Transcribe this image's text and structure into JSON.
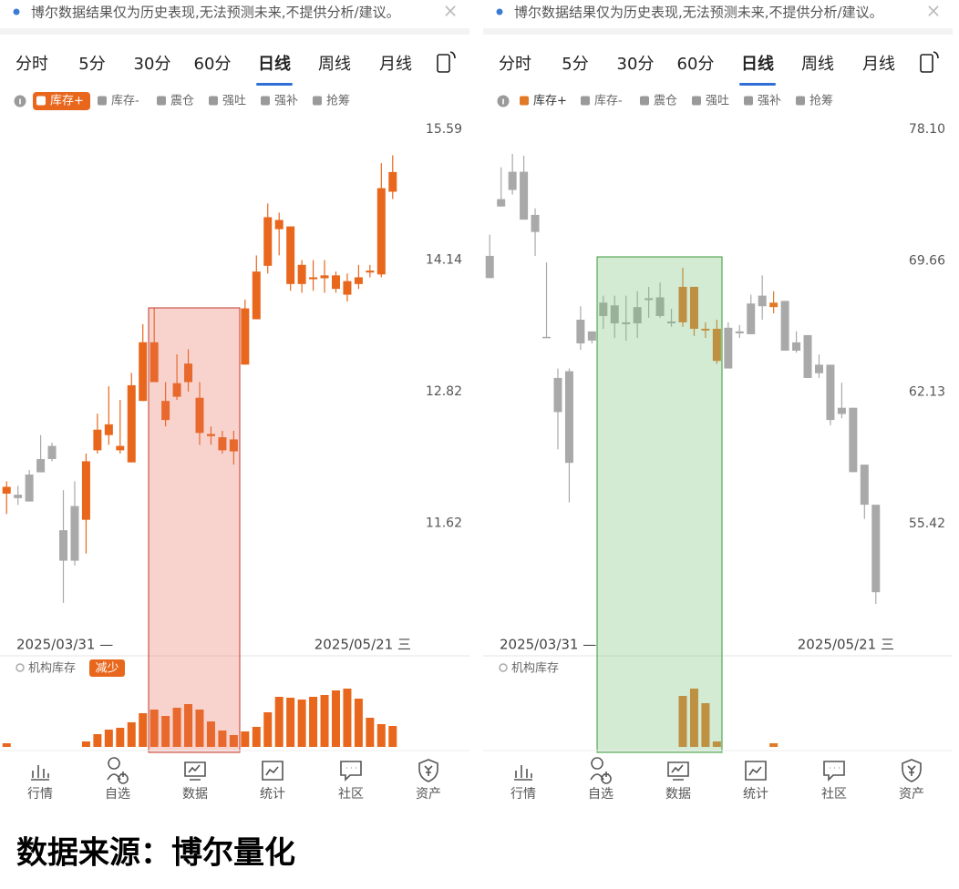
{
  "footer": "数据来源：博尔量化",
  "panels": [
    {
      "notice": "博尔数据结果仅为历史表现,无法预测未来,不提供分析/建议。",
      "close": "×",
      "tabs": [
        "分时",
        "5分",
        "30分",
        "60分",
        "日线",
        "周线",
        "月线"
      ],
      "active_tab": 4,
      "legend": [
        "库存+",
        "库存-",
        "震仓",
        "强吐",
        "强补",
        "抢筹"
      ],
      "legend_active": 0,
      "legend_style": "pill",
      "chart_data": {
        "type": "candlestick",
        "log_scale": true,
        "ylim": [
          10.67,
          15.77
        ],
        "yticks": [
          15.59,
          14.14,
          12.82,
          11.62
        ],
        "highlight_color": "#e8671c",
        "base_color": "#a9a9a9",
        "candles": [
          [
            11.88,
            11.94,
            11.99,
            11.7
          ],
          [
            11.87,
            11.84,
            11.95,
            11.78
          ],
          [
            11.81,
            12.05,
            12.09,
            11.81
          ],
          [
            12.07,
            12.19,
            12.41,
            12.07
          ],
          [
            12.19,
            12.31,
            12.34,
            12.17
          ],
          [
            11.56,
            11.3,
            11.91,
            10.95
          ],
          [
            11.3,
            11.77,
            11.99,
            11.26
          ],
          [
            11.65,
            12.17,
            12.24,
            11.36
          ],
          [
            12.27,
            12.46,
            12.61,
            12.24
          ],
          [
            12.41,
            12.51,
            12.87,
            12.32
          ],
          [
            12.31,
            12.27,
            12.74,
            12.24
          ],
          [
            12.16,
            12.88,
            13.0,
            12.16
          ],
          [
            12.73,
            13.3,
            13.48,
            12.73
          ],
          [
            13.3,
            12.91,
            13.64,
            12.91
          ],
          [
            12.73,
            12.55,
            12.91,
            12.49
          ],
          [
            12.77,
            12.9,
            13.18,
            12.74
          ],
          [
            12.91,
            13.09,
            13.23,
            12.82
          ],
          [
            12.76,
            12.43,
            12.91,
            12.32
          ],
          [
            12.42,
            12.4,
            12.49,
            12.32
          ],
          [
            12.39,
            12.27,
            12.45,
            12.24
          ],
          [
            12.37,
            12.26,
            12.45,
            12.14
          ],
          [
            13.08,
            13.64,
            13.73,
            13.08
          ],
          [
            13.53,
            14.02,
            14.19,
            13.53
          ],
          [
            14.08,
            14.6,
            14.75,
            14.0
          ],
          [
            14.47,
            14.57,
            14.65,
            14.19
          ],
          [
            14.5,
            13.89,
            14.5,
            13.82
          ],
          [
            13.89,
            14.09,
            14.14,
            13.8
          ],
          [
            13.96,
            13.94,
            14.14,
            13.82
          ],
          [
            13.98,
            13.95,
            14.14,
            13.8
          ],
          [
            13.98,
            13.84,
            14.02,
            13.8
          ],
          [
            13.92,
            13.78,
            14.0,
            13.71
          ],
          [
            13.89,
            13.96,
            14.09,
            13.84
          ],
          [
            14.01,
            14.03,
            14.09,
            13.96
          ],
          [
            13.99,
            14.92,
            15.2,
            13.96
          ],
          [
            14.88,
            15.1,
            15.29,
            14.8
          ]
        ],
        "highlight": [
          true,
          false,
          false,
          false,
          false,
          false,
          false,
          true,
          true,
          true,
          true,
          true,
          true,
          true,
          true,
          true,
          true,
          true,
          true,
          true,
          true,
          true,
          true,
          true,
          true,
          true,
          true,
          true,
          true,
          true,
          true,
          true,
          true,
          true,
          true
        ],
        "start_date": "2025/03/31 —",
        "end_date": "2025/05/21 三",
        "volume_label": "机构库存",
        "volume_badge": "减少",
        "volume_color": "#e8671c",
        "volumes": [
          4,
          0,
          0,
          0,
          0,
          0,
          0,
          6,
          14,
          19,
          21,
          27,
          37,
          41,
          34,
          43,
          47,
          41,
          28,
          18,
          13,
          17,
          22,
          38,
          55,
          54,
          52,
          55,
          57,
          62,
          64,
          53,
          32,
          25,
          23
        ]
      },
      "nav": [
        "行情",
        "自选",
        "数据",
        "统计",
        "社区",
        "资产"
      ]
    },
    {
      "notice": "博尔数据结果仅为历史表现,无法预测未来,不提供分析/建议。",
      "close": "×",
      "tabs": [
        "分时",
        "5分",
        "30分",
        "60分",
        "日线",
        "周线",
        "月线"
      ],
      "active_tab": 4,
      "legend": [
        "库存+",
        "库存-",
        "震仓",
        "强吐",
        "强补",
        "抢筹"
      ],
      "legend_active": 0,
      "legend_style": "square",
      "chart_data": {
        "type": "candlestick",
        "log_scale": true,
        "ylim": [
          50.19,
          79.16
        ],
        "yticks": [
          {
            "value": 78.1,
            "label": "78.10"
          },
          69.66,
          62.13,
          55.42
        ],
        "highlight_color": "#e07a26",
        "base_color": "#a9a9a9",
        "candles": [
          [
            68.62,
            69.96,
            71.26,
            68.62
          ],
          [
            73.03,
            73.5,
            75.56,
            73.03
          ],
          [
            74.09,
            75.27,
            76.45,
            73.79
          ],
          [
            75.27,
            72.2,
            76.33,
            72.2
          ],
          [
            72.5,
            71.43,
            72.91,
            69.96
          ],
          [
            65.2,
            65.14,
            69.56,
            65.14
          ],
          [
            61.07,
            62.91,
            63.43,
            59.12
          ],
          [
            58.43,
            63.28,
            63.43,
            56.45
          ],
          [
            64.83,
            66.18,
            66.96,
            64.47
          ],
          [
            64.99,
            65.51,
            65.51,
            64.83
          ],
          [
            66.39,
            67.17,
            67.58,
            65.66
          ],
          [
            67.01,
            65.97,
            67.58,
            65.14
          ],
          [
            65.92,
            66.03,
            67.58,
            64.99
          ],
          [
            65.97,
            66.91,
            67.84,
            65.14
          ],
          [
            67.32,
            67.43,
            68.1,
            66.29
          ],
          [
            66.39,
            67.48,
            68.36,
            66.29
          ],
          [
            66.08,
            65.97,
            66.81,
            65.77
          ],
          [
            66.03,
            68.1,
            69.24,
            65.77
          ],
          [
            68.1,
            65.66,
            68.1,
            65.25
          ],
          [
            65.66,
            65.56,
            66.03,
            65.14
          ],
          [
            65.66,
            63.85,
            66.18,
            63.69
          ],
          [
            63.43,
            65.72,
            66.03,
            63.43
          ],
          [
            65.4,
            65.51,
            65.87,
            65.14
          ],
          [
            65.35,
            67.12,
            67.64,
            65.35
          ],
          [
            66.96,
            67.58,
            68.78,
            66.18
          ],
          [
            67.17,
            66.91,
            67.84,
            66.55
          ],
          [
            67.27,
            64.42,
            67.27,
            64.42
          ],
          [
            64.42,
            64.89,
            65.51,
            64.31
          ],
          [
            65.3,
            62.91,
            65.3,
            62.91
          ],
          [
            63.17,
            63.64,
            64.21,
            62.91
          ],
          [
            63.64,
            60.65,
            63.64,
            60.37
          ],
          [
            60.97,
            61.3,
            62.65,
            60.74
          ],
          [
            61.3,
            57.96,
            61.3,
            57.96
          ],
          [
            58.34,
            56.34,
            58.34,
            55.65
          ],
          [
            56.34,
            52.21,
            56.34,
            51.68
          ]
        ],
        "highlight": [
          false,
          false,
          false,
          false,
          false,
          false,
          false,
          false,
          false,
          false,
          false,
          false,
          false,
          false,
          false,
          false,
          false,
          true,
          true,
          true,
          true,
          false,
          false,
          false,
          false,
          true,
          false,
          false,
          false,
          false,
          false,
          false,
          false,
          false,
          false
        ],
        "start_date": "2025/03/31 —",
        "end_date": "2025/05/21 三",
        "volume_label": "机构库存",
        "volume_color": "#e07a26",
        "volumes": [
          0,
          0,
          0,
          0,
          0,
          0,
          0,
          0,
          0,
          0,
          0,
          0,
          0,
          0,
          0,
          0,
          0,
          56,
          64,
          48,
          6,
          0,
          0,
          0,
          0,
          4,
          0,
          0,
          0,
          0,
          0,
          0,
          0,
          0,
          0
        ]
      },
      "nav": [
        "行情",
        "自选",
        "数据",
        "统计",
        "社区",
        "资产"
      ]
    }
  ]
}
